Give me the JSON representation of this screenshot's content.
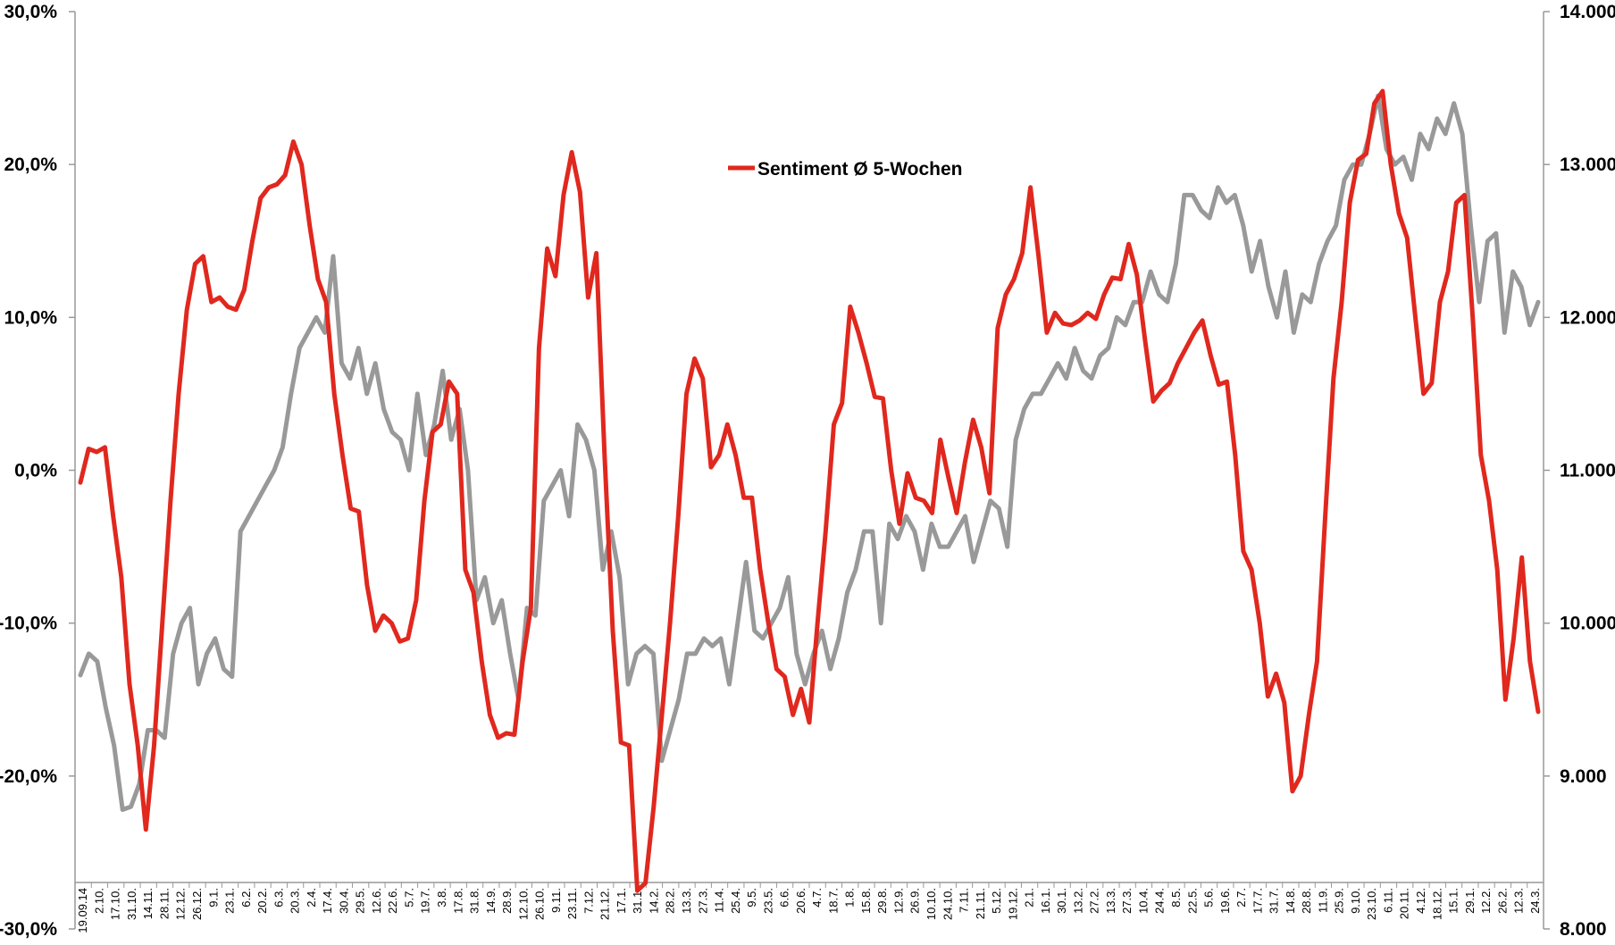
{
  "chart_data": {
    "type": "line",
    "legend": {
      "label": "Sentiment Ø 5-Wochen",
      "placement": "top-center"
    },
    "y_left": {
      "ylim": [
        -30,
        30
      ],
      "ticks": [
        30,
        20,
        10,
        0,
        -10,
        -20,
        -30
      ],
      "tick_labels": [
        "30,0%",
        "20,0%",
        "10,0%",
        "0,0%",
        "-10,0%",
        "-20,0%",
        "-30,0%"
      ]
    },
    "y_right": {
      "ylim": [
        8000,
        14000
      ],
      "ticks": [
        14000,
        13000,
        12000,
        11000,
        10000,
        9000,
        8000
      ],
      "tick_labels": [
        "14.000",
        "13.000",
        "12.000",
        "11.000",
        "10.000",
        "9.000",
        "8.000"
      ]
    },
    "x_tick_labels": [
      "19.09.14",
      "2.10.",
      "17.10.",
      "31.10.",
      "14.11.",
      "28.11.",
      "12.12.",
      "26.12.",
      "9.1.",
      "23.1.",
      "6.2.",
      "20.2.",
      "6.3.",
      "20.3.",
      "2.4.",
      "17.4.",
      "30.4.",
      "29.5.",
      "12.6.",
      "22.6.",
      "5.7.",
      "19.7.",
      "3.8.",
      "17.8.",
      "31.8.",
      "14.9.",
      "28.9.",
      "12.10.",
      "26.10.",
      "9.11.",
      "23.11.",
      "7.12.",
      "21.12.",
      "17.1.",
      "31.1.",
      "14.2.",
      "28.2.",
      "13.3.",
      "27.3.",
      "11.4.",
      "25.4.",
      "9.5.",
      "23.5.",
      "6.6.",
      "20.6.",
      "4.7.",
      "18.7.",
      "1.8.",
      "15.8.",
      "29.8.",
      "12.9.",
      "26.9.",
      "10.10.",
      "24.10.",
      "7.11.",
      "21.11.",
      "5.12.",
      "19.12.",
      "2.1.",
      "16.1.",
      "30.1.",
      "13.2.",
      "27.2.",
      "13.3.",
      "27.3.",
      "10.4.",
      "24.4.",
      "8.5.",
      "22.5.",
      "5.6.",
      "19.6.",
      "2.7.",
      "17.7.",
      "31.7.",
      "14.8.",
      "28.8.",
      "11.9.",
      "25.9.",
      "9.10.",
      "23.10.",
      "6.11.",
      "20.11.",
      "4.12.",
      "18.12.",
      "15.1.",
      "29.1.",
      "12.2.",
      "26.2.",
      "12.3.",
      "24.3."
    ],
    "series": [
      {
        "name": "Sentiment Ø 5-Wochen",
        "axis": "left",
        "color": "#e0281e",
        "values": [
          -0.8,
          1.4,
          1.2,
          1.5,
          -3.0,
          -7.0,
          -14.0,
          -18.0,
          -23.5,
          -18.0,
          -10.0,
          -2.0,
          5.0,
          10.5,
          13.5,
          14.0,
          11.0,
          11.3,
          10.7,
          10.5,
          11.8,
          15.0,
          17.8,
          18.5,
          18.7,
          19.3,
          21.5,
          20.0,
          16.0,
          12.5,
          11.0,
          5.0,
          1.0,
          -2.5,
          -2.7,
          -7.5,
          -10.5,
          -9.5,
          -10.0,
          -11.2,
          -11.0,
          -8.5,
          -2.0,
          2.5,
          3.0,
          5.8,
          5.0,
          -6.5,
          -8.0,
          -12.5,
          -16.0,
          -17.5,
          -17.2,
          -17.3,
          -12.5,
          -9.0,
          8.0,
          14.5,
          12.7,
          18.0,
          20.8,
          18.2,
          11.3,
          14.2,
          1.0,
          -10.5,
          -17.8,
          -18.0,
          -27.5,
          -27.0,
          -22.0,
          -16.0,
          -10.0,
          -3.0,
          5.0,
          7.3,
          6.0,
          0.2,
          1.0,
          3.0,
          1.0,
          -1.8,
          -1.8,
          -6.5,
          -10.0,
          -13.0,
          -13.5,
          -16.0,
          -14.3,
          -16.5,
          -10.0,
          -4.0,
          3.0,
          4.4,
          10.7,
          9.0,
          7.0,
          4.8,
          4.7,
          0.0,
          -3.5,
          -0.2,
          -1.8,
          -2.0,
          -2.8,
          2.0,
          -0.5,
          -2.8,
          0.5,
          3.3,
          1.5,
          -1.5,
          9.3,
          11.5,
          12.5,
          14.2,
          18.5,
          14.0,
          9.0,
          10.3,
          9.6,
          9.5,
          9.8,
          10.3,
          9.9,
          11.5,
          12.6,
          12.5,
          14.8,
          12.8,
          8.5,
          4.5,
          5.2,
          5.7,
          7.0,
          8.0,
          9.0,
          9.8,
          7.5,
          5.6,
          5.8,
          1.0,
          -5.3,
          -6.5,
          -10.0,
          -14.8,
          -13.3,
          -15.2,
          -21.0,
          -20.0,
          -16.0,
          -12.5,
          -3.0,
          6.0,
          11.0,
          17.5,
          20.3,
          20.7,
          24.0,
          24.8,
          20.0,
          16.8,
          15.2,
          10.0,
          5.0,
          5.7,
          11.0,
          13.0,
          17.5,
          18.0,
          10.0,
          1.0,
          -2.0,
          -6.5,
          -15.0,
          -11.0,
          -5.7,
          -12.5,
          -15.8
        ]
      },
      {
        "name": "",
        "axis": "right",
        "color": "#999999",
        "values": [
          9.66,
          9.8,
          9.75,
          9.45,
          9.2,
          8.78,
          8.8,
          8.95,
          9.3,
          9.3,
          9.25,
          9.8,
          10.0,
          10.1,
          9.6,
          9.8,
          9.9,
          9.7,
          9.65,
          10.6,
          10.7,
          10.8,
          10.9,
          11.0,
          11.15,
          11.5,
          11.8,
          11.9,
          12.0,
          11.9,
          12.4,
          11.7,
          11.6,
          11.8,
          11.5,
          11.7,
          11.4,
          11.25,
          11.2,
          11.0,
          11.5,
          11.1,
          11.3,
          11.65,
          11.2,
          11.4,
          11.0,
          10.15,
          10.3,
          10.0,
          10.15,
          9.8,
          9.5,
          10.1,
          10.05,
          10.8,
          10.9,
          11.0,
          10.7,
          11.3,
          11.2,
          11.0,
          10.35,
          10.6,
          10.3,
          9.6,
          9.8,
          9.85,
          9.8,
          9.1,
          9.3,
          9.5,
          9.8,
          9.8,
          9.9,
          9.85,
          9.9,
          9.6,
          10.0,
          10.4,
          9.95,
          9.9,
          10.0,
          10.1,
          10.3,
          9.8,
          9.6,
          9.8,
          9.95,
          9.7,
          9.9,
          10.2,
          10.35,
          10.6,
          10.6,
          10.0,
          10.65,
          10.55,
          10.7,
          10.6,
          10.35,
          10.65,
          10.5,
          10.5,
          10.6,
          10.7,
          10.4,
          10.6,
          10.8,
          10.75,
          10.5,
          11.2,
          11.4,
          11.5,
          11.5,
          11.6,
          11.7,
          11.6,
          11.8,
          11.65,
          11.6,
          11.75,
          11.8,
          12.0,
          11.95,
          12.1,
          12.1,
          12.3,
          12.15,
          12.1,
          12.35,
          12.8,
          12.8,
          12.7,
          12.65,
          12.85,
          12.75,
          12.8,
          12.6,
          12.3,
          12.5,
          12.2,
          12.0,
          12.3,
          11.9,
          12.15,
          12.1,
          12.35,
          12.5,
          12.6,
          12.9,
          13.0,
          13.0,
          13.2,
          13.45,
          13.1,
          13.0,
          13.05,
          12.9,
          13.2,
          13.1,
          13.3,
          13.2,
          13.4,
          13.2,
          12.6,
          12.1,
          12.5,
          12.55,
          11.9,
          12.3,
          12.2,
          11.95,
          12.1
        ]
      }
    ],
    "grid": false
  }
}
